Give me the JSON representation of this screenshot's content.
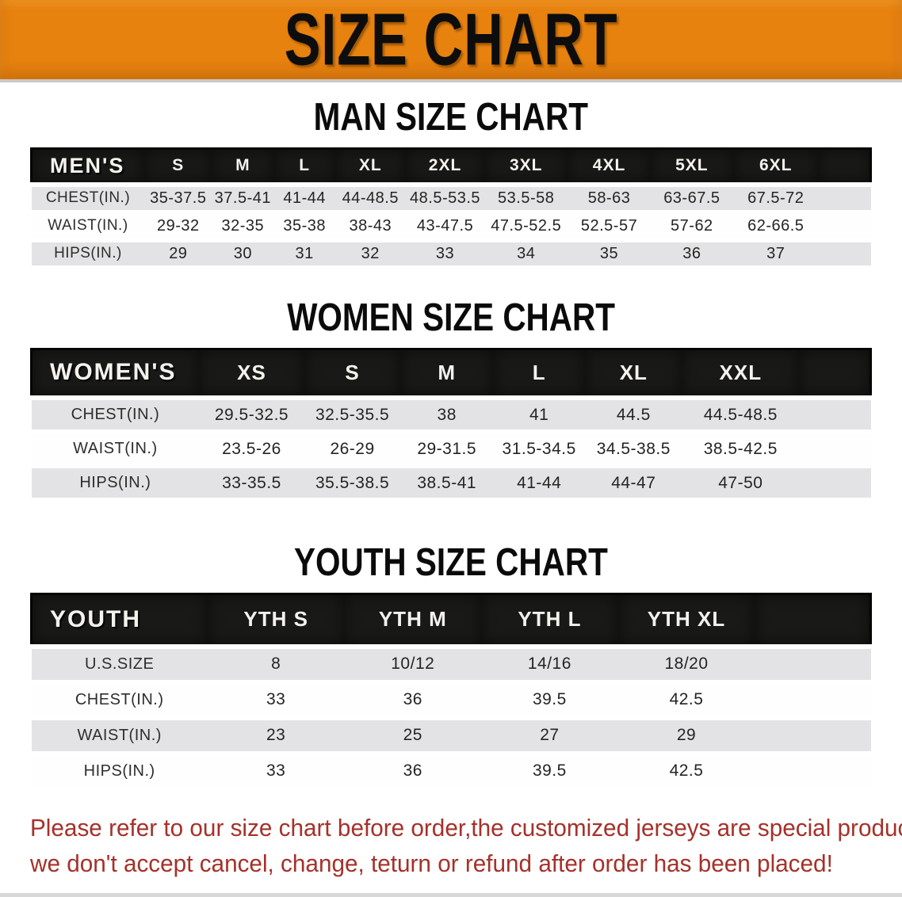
{
  "banner": {
    "title": "SIZE CHART"
  },
  "section_titles": {
    "men": "MAN SIZE CHART",
    "women": "WOMEN SIZE CHART",
    "youth": "YOUTH SIZE CHART"
  },
  "tables": {
    "men": {
      "label": "MEN'S",
      "sizes": [
        "S",
        "M",
        "L",
        "XL",
        "2XL",
        "3XL",
        "4XL",
        "5XL",
        "6XL"
      ],
      "rows": [
        {
          "label": "CHEST(IN.)",
          "values": [
            "35-37.5",
            "37.5-41",
            "41-44",
            "44-48.5",
            "48.5-53.5",
            "53.5-58",
            "58-63",
            "63-67.5",
            "67.5-72"
          ]
        },
        {
          "label": "WAIST(IN.)",
          "values": [
            "29-32",
            "32-35",
            "35-38",
            "38-43",
            "43-47.5",
            "47.5-52.5",
            "52.5-57",
            "57-62",
            "62-66.5"
          ]
        },
        {
          "label": "HIPS(IN.)",
          "values": [
            "29",
            "30",
            "31",
            "32",
            "33",
            "34",
            "35",
            "36",
            "37"
          ]
        }
      ]
    },
    "women": {
      "label": "WOMEN'S",
      "sizes": [
        "XS",
        "S",
        "M",
        "L",
        "XL",
        "XXL"
      ],
      "rows": [
        {
          "label": "CHEST(IN.)",
          "values": [
            "29.5-32.5",
            "32.5-35.5",
            "38",
            "41",
            "44.5",
            "44.5-48.5"
          ]
        },
        {
          "label": "WAIST(IN.)",
          "values": [
            "23.5-26",
            "26-29",
            "29-31.5",
            "31.5-34.5",
            "34.5-38.5",
            "38.5-42.5"
          ]
        },
        {
          "label": "HIPS(IN.)",
          "values": [
            "33-35.5",
            "35.5-38.5",
            "38.5-41",
            "41-44",
            "44-47",
            "47-50"
          ]
        }
      ]
    },
    "youth": {
      "label": "YOUTH",
      "sizes": [
        "YTH S",
        "YTH M",
        "YTH L",
        "YTH XL"
      ],
      "rows": [
        {
          "label": "U.S.SIZE",
          "values": [
            "8",
            "10/12",
            "14/16",
            "18/20"
          ]
        },
        {
          "label": "CHEST(IN.)",
          "values": [
            "33",
            "36",
            "39.5",
            "42.5"
          ]
        },
        {
          "label": "WAIST(IN.)",
          "values": [
            "23",
            "25",
            "27",
            "29"
          ]
        },
        {
          "label": "HIPS(IN.)",
          "values": [
            "33",
            "36",
            "39.5",
            "42.5"
          ]
        }
      ]
    }
  },
  "footer": {
    "line1": "Please refer to our size chart before order,the customized jerseys are special products,",
    "line2": "we don't accept cancel, change, teturn or refund after order has been placed!"
  },
  "colors": {
    "banner_orange": "#e7820f",
    "header_bar_black": "#191917",
    "row_gray": "#e3e3e5",
    "footer_red": "#a5312a"
  }
}
